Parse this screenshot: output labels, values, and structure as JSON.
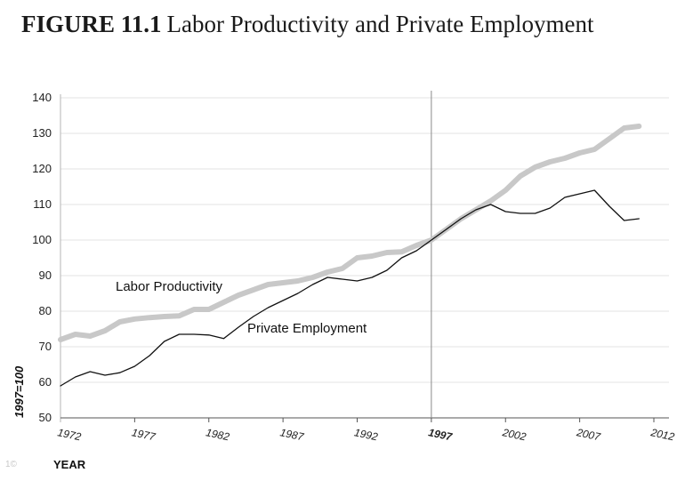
{
  "figure": {
    "number": "FIGURE 11.1",
    "title": "Labor Productivity and Private Employment"
  },
  "chart_data": {
    "type": "line",
    "title": "Labor Productivity and Private Employment",
    "xlabel": "YEAR",
    "ylabel": "1997=100",
    "xlim": [
      1972,
      2012
    ],
    "ylim": [
      50,
      140
    ],
    "grid": "horizontal",
    "y_ticks": [
      50,
      60,
      70,
      80,
      90,
      100,
      110,
      120,
      130,
      140
    ],
    "x_ticks": [
      1972,
      1977,
      1982,
      1987,
      1992,
      1997,
      2002,
      2007,
      2012
    ],
    "x_tick_labels": [
      "1972",
      "1977",
      "1982",
      "1987",
      "1992",
      "1997",
      "2002",
      "2007",
      "2012"
    ],
    "highlight_x": 1997,
    "series": [
      {
        "name": "Labor Productivity",
        "color": "#c8c8c8",
        "x": [
          1972,
          1973,
          1974,
          1975,
          1976,
          1977,
          1978,
          1979,
          1980,
          1981,
          1982,
          1983,
          1984,
          1985,
          1986,
          1987,
          1988,
          1989,
          1990,
          1991,
          1992,
          1993,
          1994,
          1995,
          1996,
          1997,
          1998,
          1999,
          2000,
          2001,
          2002,
          2003,
          2004,
          2005,
          2006,
          2007,
          2008,
          2009,
          2010,
          2011
        ],
        "values": [
          72,
          73.5,
          73,
          74.5,
          77,
          77.8,
          78.2,
          78.5,
          78.7,
          80.5,
          80.5,
          82.5,
          84.5,
          86,
          87.5,
          88,
          88.5,
          89.5,
          91,
          92,
          95,
          95.5,
          96.5,
          96.7,
          98.5,
          100,
          103,
          106,
          108.5,
          111,
          114,
          118,
          120.5,
          122,
          123,
          124.5,
          125.5,
          128.5,
          131.5,
          132
        ]
      },
      {
        "name": "Private Employment",
        "color": "#111111",
        "x": [
          1972,
          1973,
          1974,
          1975,
          1976,
          1977,
          1978,
          1979,
          1980,
          1981,
          1982,
          1983,
          1984,
          1985,
          1986,
          1987,
          1988,
          1989,
          1990,
          1991,
          1992,
          1993,
          1994,
          1995,
          1996,
          1997,
          1998,
          1999,
          2000,
          2001,
          2002,
          2003,
          2004,
          2005,
          2006,
          2007,
          2008,
          2009,
          2010,
          2011
        ],
        "values": [
          59,
          61.5,
          63,
          62,
          62.7,
          64.5,
          67.5,
          71.5,
          73.5,
          73.5,
          73.3,
          72.3,
          75.5,
          78.5,
          81,
          83,
          85,
          87.5,
          89.5,
          89,
          88.5,
          89.5,
          91.5,
          95,
          97,
          100,
          103,
          106,
          108.5,
          110,
          108,
          107.5,
          107.5,
          109,
          112,
          113,
          114,
          109.5,
          105.5,
          106
        ]
      }
    ],
    "annotations": [
      {
        "text": "Labor Productivity",
        "series": "Labor Productivity"
      },
      {
        "text": "Private Employment",
        "series": "Private Employment"
      }
    ]
  },
  "watermark": "1©"
}
